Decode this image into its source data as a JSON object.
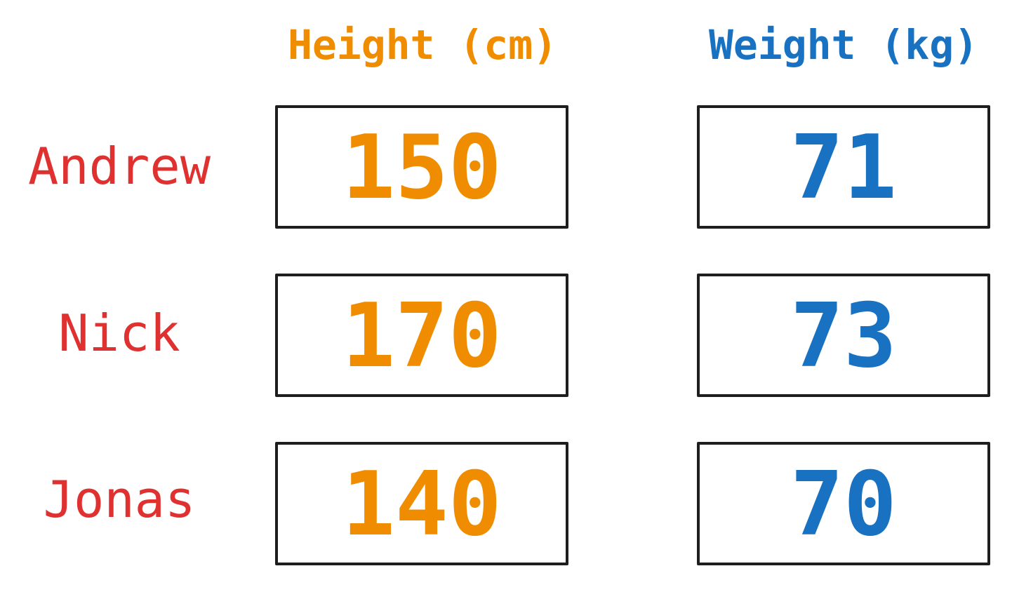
{
  "headers": {
    "height": "Height (cm)",
    "weight": "Weight (kg)"
  },
  "colors": {
    "height": "#f08c00",
    "weight": "#1971c2",
    "names": "#e03131",
    "box_border": "#1e1e1e"
  },
  "rows": [
    {
      "name": "Andrew",
      "height": "150",
      "weight": "71"
    },
    {
      "name": "Nick",
      "height": "170",
      "weight": "73"
    },
    {
      "name": "Jonas",
      "height": "140",
      "weight": "70"
    }
  ]
}
